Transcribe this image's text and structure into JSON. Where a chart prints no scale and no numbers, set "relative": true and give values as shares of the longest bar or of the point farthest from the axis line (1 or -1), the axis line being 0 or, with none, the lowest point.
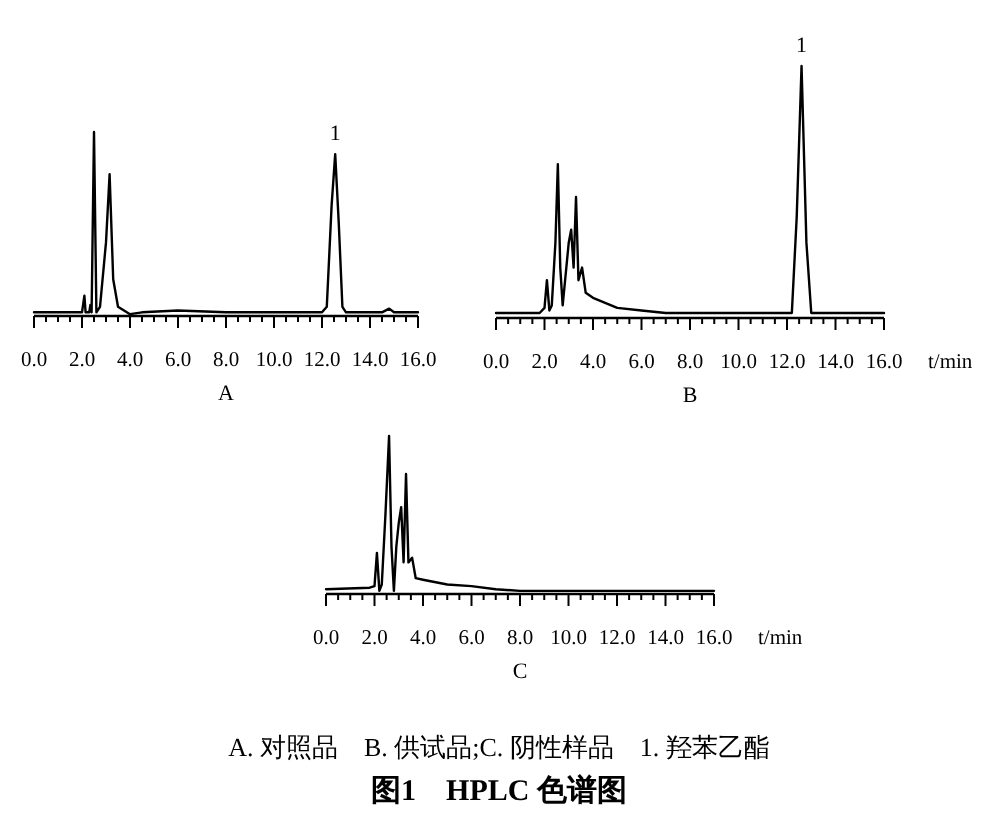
{
  "chart_data": [
    {
      "type": "line",
      "title": "A",
      "relative": true,
      "xlim": [
        0,
        16
      ],
      "xticks": [
        {
          "value": 0,
          "label": "0.0"
        },
        {
          "value": 0.5,
          "label": null
        },
        {
          "value": 1,
          "label": null
        },
        {
          "value": 1.5,
          "label": null
        },
        {
          "value": 2,
          "label": "2.0"
        },
        {
          "value": 2.5,
          "label": null
        },
        {
          "value": 3,
          "label": null
        },
        {
          "value": 3.5,
          "label": null
        },
        {
          "value": 4,
          "label": "4.0"
        },
        {
          "value": 4.5,
          "label": null
        },
        {
          "value": 5,
          "label": null
        },
        {
          "value": 5.5,
          "label": null
        },
        {
          "value": 6,
          "label": "6.0"
        },
        {
          "value": 6.5,
          "label": null
        },
        {
          "value": 7,
          "label": null
        },
        {
          "value": 7.5,
          "label": null
        },
        {
          "value": 8,
          "label": "8.0"
        },
        {
          "value": 8.5,
          "label": null
        },
        {
          "value": 9,
          "label": null
        },
        {
          "value": 9.5,
          "label": null
        },
        {
          "value": 10,
          "label": "10.0"
        },
        {
          "value": 10.5,
          "label": null
        },
        {
          "value": 11,
          "label": null
        },
        {
          "value": 11.5,
          "label": null
        },
        {
          "value": 12,
          "label": "12.0"
        },
        {
          "value": 12.5,
          "label": null
        },
        {
          "value": 13,
          "label": null
        },
        {
          "value": 13.5,
          "label": null
        },
        {
          "value": 14,
          "label": "14.0"
        },
        {
          "value": 14.5,
          "label": null
        },
        {
          "value": 15,
          "label": null
        },
        {
          "value": 15.5,
          "label": null
        },
        {
          "value": 16,
          "label": "16.0"
        }
      ],
      "x": [
        0,
        2.0,
        2.1,
        2.15,
        2.3,
        2.35,
        2.4,
        2.5,
        2.6,
        2.75,
        3.0,
        3.15,
        3.3,
        3.5,
        4.0,
        4.5,
        6,
        8,
        10,
        12.0,
        12.2,
        12.4,
        12.55,
        12.7,
        12.85,
        13.0,
        14.5,
        14.8,
        15,
        16
      ],
      "series": [
        {
          "color": "#000000",
          "values": [
            0.02,
            0.02,
            0.11,
            0.02,
            0.02,
            0.06,
            0.02,
            1.0,
            0.02,
            0.05,
            0.4,
            0.77,
            0.2,
            0.05,
            0.01,
            0.02,
            0.03,
            0.02,
            0.02,
            0.02,
            0.05,
            0.6,
            0.88,
            0.5,
            0.05,
            0.02,
            0.02,
            0.04,
            0.02,
            0.02
          ]
        }
      ],
      "annotations": [
        {
          "text": "1",
          "x": 12.55,
          "y": 0.88
        }
      ]
    },
    {
      "type": "line",
      "title": "B",
      "xlabel": "t/min",
      "relative": true,
      "xlim": [
        0,
        16
      ],
      "xticks": [
        {
          "value": 0,
          "label": "0.0"
        },
        {
          "value": 0.5,
          "label": null
        },
        {
          "value": 1,
          "label": null
        },
        {
          "value": 1.5,
          "label": null
        },
        {
          "value": 2,
          "label": "2.0"
        },
        {
          "value": 2.5,
          "label": null
        },
        {
          "value": 3,
          "label": null
        },
        {
          "value": 3.5,
          "label": null
        },
        {
          "value": 4,
          "label": "4.0"
        },
        {
          "value": 4.5,
          "label": null
        },
        {
          "value": 5,
          "label": null
        },
        {
          "value": 5.5,
          "label": null
        },
        {
          "value": 6,
          "label": "6.0"
        },
        {
          "value": 6.5,
          "label": null
        },
        {
          "value": 7,
          "label": null
        },
        {
          "value": 7.5,
          "label": null
        },
        {
          "value": 8,
          "label": "8.0"
        },
        {
          "value": 8.5,
          "label": null
        },
        {
          "value": 9,
          "label": null
        },
        {
          "value": 9.5,
          "label": null
        },
        {
          "value": 10,
          "label": "10.0"
        },
        {
          "value": 10.5,
          "label": null
        },
        {
          "value": 11,
          "label": null
        },
        {
          "value": 11.5,
          "label": null
        },
        {
          "value": 12,
          "label": "12.0"
        },
        {
          "value": 12.5,
          "label": null
        },
        {
          "value": 13,
          "label": null
        },
        {
          "value": 13.5,
          "label": null
        },
        {
          "value": 14,
          "label": "14.0"
        },
        {
          "value": 14.5,
          "label": null
        },
        {
          "value": 15,
          "label": null
        },
        {
          "value": 15.5,
          "label": null
        },
        {
          "value": 16,
          "label": "16.0"
        }
      ],
      "x": [
        0,
        1.8,
        2.0,
        2.1,
        2.2,
        2.3,
        2.45,
        2.55,
        2.65,
        2.75,
        2.85,
        3.0,
        3.1,
        3.2,
        3.3,
        3.4,
        3.55,
        3.7,
        4.0,
        4.5,
        5,
        6,
        7,
        8,
        12.2,
        12.4,
        12.6,
        12.8,
        13.0,
        16
      ],
      "series": [
        {
          "color": "#000000",
          "values": [
            0.02,
            0.02,
            0.04,
            0.15,
            0.03,
            0.05,
            0.3,
            0.61,
            0.2,
            0.05,
            0.15,
            0.3,
            0.35,
            0.2,
            0.48,
            0.15,
            0.2,
            0.1,
            0.08,
            0.06,
            0.04,
            0.03,
            0.02,
            0.02,
            0.02,
            0.4,
            1.0,
            0.3,
            0.02,
            0.02
          ]
        }
      ],
      "annotations": [
        {
          "text": "1",
          "x": 12.6,
          "y": 1.0
        }
      ]
    },
    {
      "type": "line",
      "title": "C",
      "xlabel": "t/min",
      "relative": true,
      "xlim": [
        0,
        16
      ],
      "xticks": [
        {
          "value": 0,
          "label": "0.0"
        },
        {
          "value": 0.5,
          "label": null
        },
        {
          "value": 1,
          "label": null
        },
        {
          "value": 1.5,
          "label": null
        },
        {
          "value": 2,
          "label": "2.0"
        },
        {
          "value": 2.5,
          "label": null
        },
        {
          "value": 3,
          "label": null
        },
        {
          "value": 3.5,
          "label": null
        },
        {
          "value": 4,
          "label": "4.0"
        },
        {
          "value": 4.5,
          "label": null
        },
        {
          "value": 5,
          "label": null
        },
        {
          "value": 5.5,
          "label": null
        },
        {
          "value": 6,
          "label": "6.0"
        },
        {
          "value": 6.5,
          "label": null
        },
        {
          "value": 7,
          "label": null
        },
        {
          "value": 7.5,
          "label": null
        },
        {
          "value": 8,
          "label": "8.0"
        },
        {
          "value": 8.5,
          "label": null
        },
        {
          "value": 9,
          "label": null
        },
        {
          "value": 9.5,
          "label": null
        },
        {
          "value": 10,
          "label": "10.0"
        },
        {
          "value": 10.5,
          "label": null
        },
        {
          "value": 11,
          "label": null
        },
        {
          "value": 11.5,
          "label": null
        },
        {
          "value": 12,
          "label": "12.0"
        },
        {
          "value": 12.5,
          "label": null
        },
        {
          "value": 13,
          "label": null
        },
        {
          "value": 13.5,
          "label": null
        },
        {
          "value": 14,
          "label": "14.0"
        },
        {
          "value": 14.5,
          "label": null
        },
        {
          "value": 15,
          "label": null
        },
        {
          "value": 15.5,
          "label": null
        },
        {
          "value": 16,
          "label": "16.0"
        }
      ],
      "x": [
        0,
        1.8,
        2.0,
        2.1,
        2.2,
        2.3,
        2.45,
        2.6,
        2.7,
        2.8,
        2.9,
        3.0,
        3.1,
        3.2,
        3.3,
        3.4,
        3.55,
        3.7,
        4.0,
        5,
        6,
        7,
        8,
        10,
        16
      ],
      "series": [
        {
          "color": "#000000",
          "values": [
            0.03,
            0.04,
            0.05,
            0.26,
            0.02,
            0.06,
            0.5,
            1.0,
            0.3,
            0.02,
            0.3,
            0.45,
            0.55,
            0.2,
            0.76,
            0.2,
            0.23,
            0.1,
            0.09,
            0.06,
            0.05,
            0.03,
            0.02,
            0.02,
            0.02
          ]
        }
      ]
    },
    {
      "type": "other",
      "title": "图1　HPLC 色谱图",
      "annotations": [
        "A. 对照品　B. 供试品;C. 阴性样品　1. 羟苯乙酯"
      ]
    }
  ]
}
